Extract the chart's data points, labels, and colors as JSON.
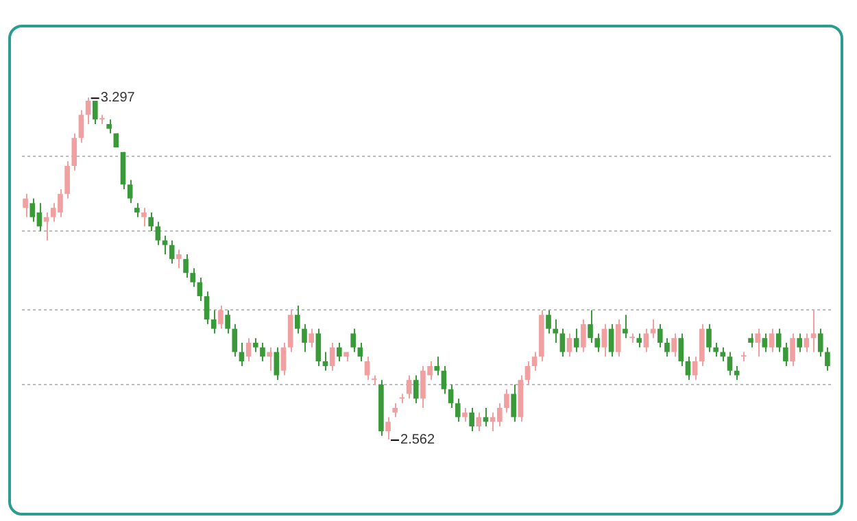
{
  "chart_data": {
    "type": "candlestick",
    "categories": [
      null,
      null,
      null,
      null,
      null,
      null,
      null,
      null,
      null,
      null,
      null,
      null,
      null,
      null,
      null,
      null,
      null,
      null,
      null,
      null,
      null,
      null,
      null,
      null,
      null,
      null,
      null,
      null,
      null,
      null,
      null,
      null,
      null,
      null,
      null,
      null,
      null,
      null,
      null,
      null,
      null,
      null,
      null,
      null,
      null,
      null,
      null,
      null,
      null,
      null,
      null,
      null,
      null,
      null,
      null,
      null,
      null,
      null,
      null,
      null,
      null,
      null,
      null,
      null,
      null,
      null,
      null,
      null,
      null,
      null,
      null,
      null,
      null,
      null,
      null,
      null,
      null,
      null,
      null,
      null,
      null,
      null,
      null,
      null,
      null,
      null,
      null,
      null,
      null,
      null,
      null,
      null,
      null,
      null,
      null,
      null,
      null,
      null,
      null,
      null,
      null,
      null,
      null,
      null,
      null,
      null,
      null,
      null,
      null,
      null,
      null,
      null,
      null,
      null,
      null,
      null
    ],
    "ohlc": [
      [
        3.06,
        3.09,
        3.04,
        3.08
      ],
      [
        3.07,
        3.08,
        3.03,
        3.04
      ],
      [
        3.05,
        3.07,
        3.01,
        3.02
      ],
      [
        3.03,
        3.05,
        2.99,
        3.04
      ],
      [
        3.04,
        3.07,
        3.03,
        3.06
      ],
      [
        3.05,
        3.1,
        3.04,
        3.09
      ],
      [
        3.09,
        3.16,
        3.08,
        3.15
      ],
      [
        3.15,
        3.22,
        3.14,
        3.21
      ],
      [
        3.21,
        3.27,
        3.2,
        3.26
      ],
      [
        3.26,
        3.297,
        3.24,
        3.29
      ],
      [
        3.29,
        3.29,
        3.24,
        3.25
      ],
      [
        3.25,
        3.26,
        3.24,
        3.25
      ],
      [
        3.24,
        3.25,
        3.22,
        3.23
      ],
      [
        3.22,
        3.22,
        3.19,
        3.19
      ],
      [
        3.18,
        3.18,
        3.1,
        3.11
      ],
      [
        3.11,
        3.12,
        3.07,
        3.08
      ],
      [
        3.06,
        3.07,
        3.04,
        3.05
      ],
      [
        3.04,
        3.06,
        3.02,
        3.05
      ],
      [
        3.04,
        3.05,
        3.01,
        3.02
      ],
      [
        3.02,
        3.03,
        2.98,
        2.99
      ],
      [
        2.99,
        3.0,
        2.96,
        2.98
      ],
      [
        2.98,
        2.99,
        2.94,
        2.95
      ],
      [
        2.95,
        2.97,
        2.93,
        2.96
      ],
      [
        2.95,
        2.96,
        2.91,
        2.92
      ],
      [
        2.92,
        2.93,
        2.89,
        2.9
      ],
      [
        2.9,
        2.91,
        2.86,
        2.87
      ],
      [
        2.87,
        2.88,
        2.81,
        2.82
      ],
      [
        2.82,
        2.84,
        2.79,
        2.8
      ],
      [
        2.81,
        2.85,
        2.8,
        2.84
      ],
      [
        2.83,
        2.84,
        2.79,
        2.8
      ],
      [
        2.8,
        2.81,
        2.74,
        2.75
      ],
      [
        2.75,
        2.77,
        2.72,
        2.73
      ],
      [
        2.74,
        2.78,
        2.73,
        2.77
      ],
      [
        2.77,
        2.78,
        2.75,
        2.76
      ],
      [
        2.76,
        2.77,
        2.73,
        2.74
      ],
      [
        2.74,
        2.76,
        2.71,
        2.75
      ],
      [
        2.75,
        2.76,
        2.69,
        2.7
      ],
      [
        2.71,
        2.77,
        2.7,
        2.76
      ],
      [
        2.76,
        2.84,
        2.75,
        2.83
      ],
      [
        2.83,
        2.85,
        2.79,
        2.8
      ],
      [
        2.8,
        2.81,
        2.75,
        2.77
      ],
      [
        2.77,
        2.8,
        2.76,
        2.79
      ],
      [
        2.79,
        2.8,
        2.72,
        2.73
      ],
      [
        2.73,
        2.75,
        2.71,
        2.72
      ],
      [
        2.72,
        2.77,
        2.71,
        2.76
      ],
      [
        2.76,
        2.77,
        2.73,
        2.74
      ],
      [
        2.74,
        2.75,
        2.73,
        2.75
      ],
      [
        2.79,
        2.8,
        2.75,
        2.76
      ],
      [
        2.76,
        2.77,
        2.73,
        2.74
      ],
      [
        2.7,
        2.74,
        2.69,
        2.73
      ],
      [
        2.69,
        2.7,
        2.68,
        2.69
      ],
      [
        2.68,
        2.69,
        2.57,
        2.58
      ],
      [
        2.58,
        2.61,
        2.562,
        2.6
      ],
      [
        2.62,
        2.64,
        2.61,
        2.63
      ],
      [
        2.65,
        2.66,
        2.64,
        2.65
      ],
      [
        2.66,
        2.7,
        2.65,
        2.69
      ],
      [
        2.69,
        2.7,
        2.64,
        2.65
      ],
      [
        2.65,
        2.72,
        2.63,
        2.71
      ],
      [
        2.7,
        2.73,
        2.69,
        2.72
      ],
      [
        2.72,
        2.74,
        2.7,
        2.71
      ],
      [
        2.71,
        2.72,
        2.66,
        2.67
      ],
      [
        2.67,
        2.68,
        2.63,
        2.64
      ],
      [
        2.64,
        2.65,
        2.6,
        2.61
      ],
      [
        2.61,
        2.63,
        2.6,
        2.62
      ],
      [
        2.62,
        2.63,
        2.58,
        2.59
      ],
      [
        2.59,
        2.62,
        2.58,
        2.61
      ],
      [
        2.61,
        2.63,
        2.59,
        2.6
      ],
      [
        2.6,
        2.62,
        2.58,
        2.61
      ],
      [
        2.6,
        2.64,
        2.59,
        2.63
      ],
      [
        2.63,
        2.67,
        2.62,
        2.66
      ],
      [
        2.66,
        2.68,
        2.6,
        2.61
      ],
      [
        2.61,
        2.7,
        2.6,
        2.69
      ],
      [
        2.69,
        2.73,
        2.68,
        2.72
      ],
      [
        2.72,
        2.75,
        2.71,
        2.74
      ],
      [
        2.74,
        2.84,
        2.73,
        2.83
      ],
      [
        2.83,
        2.84,
        2.79,
        2.8
      ],
      [
        2.8,
        2.82,
        2.77,
        2.79
      ],
      [
        2.79,
        2.8,
        2.74,
        2.75
      ],
      [
        2.75,
        2.79,
        2.74,
        2.78
      ],
      [
        2.78,
        2.8,
        2.75,
        2.76
      ],
      [
        2.76,
        2.82,
        2.75,
        2.81
      ],
      [
        2.81,
        2.84,
        2.77,
        2.78
      ],
      [
        2.78,
        2.79,
        2.75,
        2.76
      ],
      [
        2.76,
        2.81,
        2.74,
        2.8
      ],
      [
        2.8,
        2.81,
        2.74,
        2.75
      ],
      [
        2.75,
        2.82,
        2.74,
        2.81
      ],
      [
        2.8,
        2.83,
        2.78,
        2.79
      ],
      [
        2.78,
        2.79,
        2.77,
        2.78
      ],
      [
        2.78,
        2.79,
        2.76,
        2.77
      ],
      [
        2.76,
        2.8,
        2.75,
        2.79
      ],
      [
        2.79,
        2.82,
        2.78,
        2.8
      ],
      [
        2.8,
        2.81,
        2.76,
        2.77
      ],
      [
        2.77,
        2.78,
        2.74,
        2.75
      ],
      [
        2.75,
        2.79,
        2.74,
        2.78
      ],
      [
        2.78,
        2.79,
        2.72,
        2.73
      ],
      [
        2.73,
        2.74,
        2.69,
        2.7
      ],
      [
        2.7,
        2.74,
        2.69,
        2.73
      ],
      [
        2.73,
        2.81,
        2.72,
        2.8
      ],
      [
        2.8,
        2.81,
        2.75,
        2.76
      ],
      [
        2.76,
        2.77,
        2.74,
        2.75
      ],
      [
        2.75,
        2.76,
        2.73,
        2.74
      ],
      [
        2.74,
        2.75,
        2.7,
        2.71
      ],
      [
        2.71,
        2.72,
        2.69,
        2.7
      ],
      [
        2.74,
        2.75,
        2.73,
        2.74
      ],
      [
        2.78,
        2.79,
        2.76,
        2.77
      ],
      [
        2.77,
        2.8,
        2.74,
        2.79
      ],
      [
        2.78,
        2.79,
        2.75,
        2.76
      ],
      [
        2.76,
        2.8,
        2.75,
        2.79
      ],
      [
        2.79,
        2.8,
        2.75,
        2.76
      ],
      [
        2.76,
        2.77,
        2.72,
        2.73
      ],
      [
        2.73,
        2.79,
        2.72,
        2.78
      ],
      [
        2.78,
        2.79,
        2.75,
        2.76
      ],
      [
        2.76,
        2.79,
        2.75,
        2.78
      ],
      [
        2.78,
        2.84,
        2.75,
        2.79
      ],
      [
        2.79,
        2.8,
        2.74,
        2.75
      ],
      [
        2.75,
        2.76,
        2.71,
        2.72
      ]
    ],
    "colors": [
      "#f0a0a0",
      "#3a9a3a",
      "#3a9a3a",
      "#f0a0a0",
      "#f0a0a0",
      "#f0a0a0",
      "#f0a0a0",
      "#f0a0a0",
      "#f0a0a0",
      "#f0a0a0",
      "#3a9a3a",
      "#f0a0a0",
      "#3a9a3a",
      "#3a9a3a",
      "#3a9a3a",
      "#3a9a3a",
      "#3a9a3a",
      "#f0a0a0",
      "#3a9a3a",
      "#3a9a3a",
      "#3a9a3a",
      "#3a9a3a",
      "#f0a0a0",
      "#3a9a3a",
      "#3a9a3a",
      "#3a9a3a",
      "#3a9a3a",
      "#3a9a3a",
      "#f0a0a0",
      "#3a9a3a",
      "#3a9a3a",
      "#3a9a3a",
      "#f0a0a0",
      "#3a9a3a",
      "#3a9a3a",
      "#f0a0a0",
      "#3a9a3a",
      "#f0a0a0",
      "#f0a0a0",
      "#3a9a3a",
      "#3a9a3a",
      "#f0a0a0",
      "#3a9a3a",
      "#3a9a3a",
      "#f0a0a0",
      "#3a9a3a",
      "#f0a0a0",
      "#3a9a3a",
      "#3a9a3a",
      "#f0a0a0",
      "#f0a0a0",
      "#3a9a3a",
      "#f0a0a0",
      "#f0a0a0",
      "#f0a0a0",
      "#f0a0a0",
      "#3a9a3a",
      "#f0a0a0",
      "#f0a0a0",
      "#3a9a3a",
      "#3a9a3a",
      "#3a9a3a",
      "#3a9a3a",
      "#f0a0a0",
      "#3a9a3a",
      "#f0a0a0",
      "#3a9a3a",
      "#f0a0a0",
      "#f0a0a0",
      "#f0a0a0",
      "#3a9a3a",
      "#f0a0a0",
      "#f0a0a0",
      "#f0a0a0",
      "#f0a0a0",
      "#3a9a3a",
      "#3a9a3a",
      "#3a9a3a",
      "#f0a0a0",
      "#3a9a3a",
      "#f0a0a0",
      "#3a9a3a",
      "#3a9a3a",
      "#f0a0a0",
      "#3a9a3a",
      "#f0a0a0",
      "#3a9a3a",
      "#f0a0a0",
      "#3a9a3a",
      "#f0a0a0",
      "#f0a0a0",
      "#3a9a3a",
      "#3a9a3a",
      "#f0a0a0",
      "#3a9a3a",
      "#3a9a3a",
      "#f0a0a0",
      "#f0a0a0",
      "#3a9a3a",
      "#3a9a3a",
      "#3a9a3a",
      "#3a9a3a",
      "#3a9a3a",
      "#f0a0a0",
      "#3a9a3a",
      "#f0a0a0",
      "#3a9a3a",
      "#f0a0a0",
      "#3a9a3a",
      "#3a9a3a",
      "#f0a0a0",
      "#3a9a3a",
      "#f0a0a0",
      "#f0a0a0",
      "#3a9a3a",
      "#3a9a3a"
    ],
    "yticks": [
      {
        "value": 2.68,
        "label": null
      },
      {
        "value": 2.84,
        "label": null
      },
      {
        "value": 3.01,
        "label": null
      },
      {
        "value": 3.17,
        "label": null
      }
    ],
    "grid": "y",
    "legend": false,
    "annotations": [
      "3.297",
      "2.562"
    ]
  }
}
